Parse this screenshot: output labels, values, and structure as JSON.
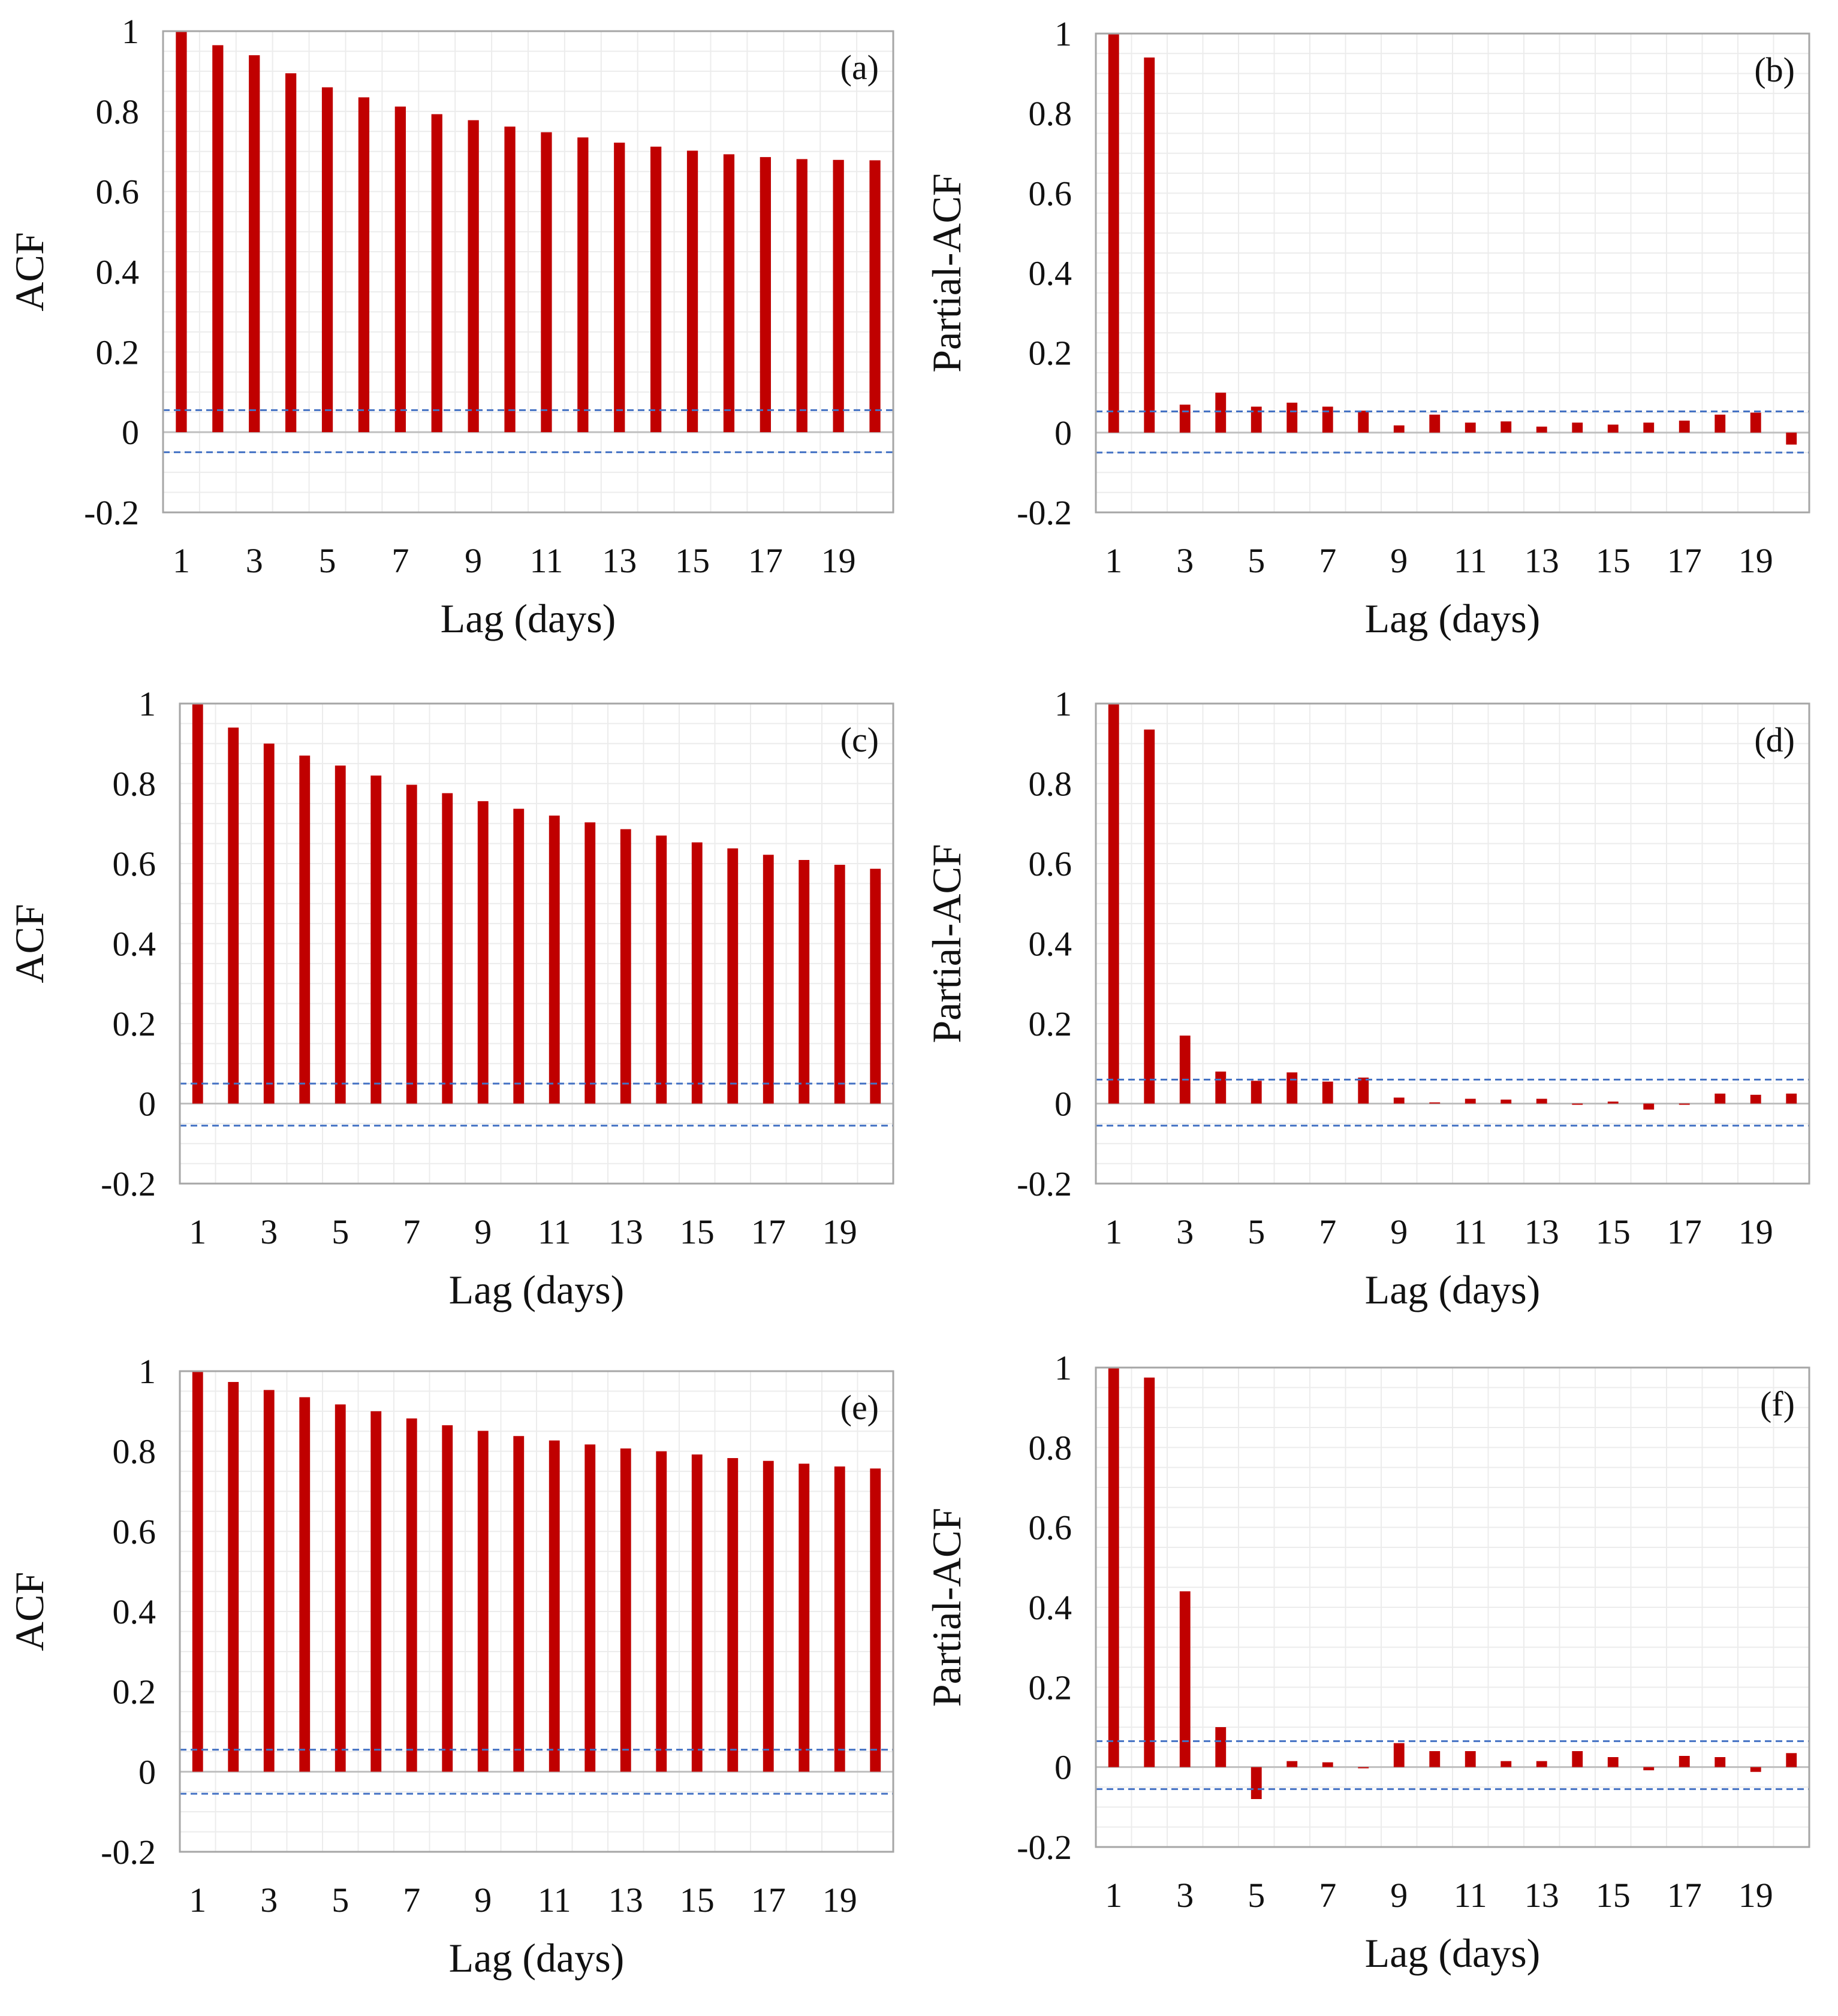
{
  "colors": {
    "bar": "#c00000",
    "confidence_line": "#4472c4",
    "frame": "#a6a6a6",
    "grid": "#ececec",
    "zero_line": "#bfbfbf"
  },
  "chart_data": [
    {
      "type": "bar",
      "panel_label": "(a)",
      "ylabel": "ACF",
      "xlabel": "Lag (days)",
      "ylim": [
        -0.2,
        1
      ],
      "y_ticks": [
        "1",
        "0.8",
        "0.6",
        "0.4",
        "0.2",
        "0",
        "-0.2"
      ],
      "x_ticks": [
        "1",
        "3",
        "5",
        "7",
        "9",
        "11",
        "13",
        "15",
        "17",
        "19"
      ],
      "lags": [
        1,
        2,
        3,
        4,
        5,
        6,
        7,
        8,
        9,
        10,
        11,
        12,
        13,
        14,
        15,
        16,
        17,
        18,
        19,
        20
      ],
      "values": [
        1.0,
        0.965,
        0.94,
        0.895,
        0.86,
        0.835,
        0.812,
        0.793,
        0.778,
        0.762,
        0.748,
        0.735,
        0.722,
        0.712,
        0.702,
        0.693,
        0.686,
        0.681,
        0.679,
        0.678
      ],
      "confidence_bounds": [
        0.055,
        -0.05
      ]
    },
    {
      "type": "bar",
      "panel_label": "(b)",
      "ylabel": "Partial-ACF",
      "xlabel": "Lag (days)",
      "ylim": [
        -0.2,
        1
      ],
      "y_ticks": [
        "1",
        "0.8",
        "0.6",
        "0.4",
        "0.2",
        "0",
        "-0.2"
      ],
      "x_ticks": [
        "1",
        "3",
        "5",
        "7",
        "9",
        "11",
        "13",
        "15",
        "17",
        "19"
      ],
      "lags": [
        1,
        2,
        3,
        4,
        5,
        6,
        7,
        8,
        9,
        10,
        11,
        12,
        13,
        14,
        15,
        16,
        17,
        18,
        19,
        20
      ],
      "values": [
        1.0,
        0.94,
        0.07,
        0.1,
        0.065,
        0.075,
        0.065,
        0.055,
        0.018,
        0.045,
        0.025,
        0.028,
        0.015,
        0.025,
        0.02,
        0.025,
        0.03,
        0.045,
        0.05,
        -0.03
      ],
      "confidence_bounds": [
        0.053,
        -0.05
      ]
    },
    {
      "type": "bar",
      "panel_label": "(c)",
      "ylabel": "ACF",
      "xlabel": "Lag (days)",
      "ylim": [
        -0.2,
        1
      ],
      "y_ticks": [
        "1",
        "0.8",
        "0.6",
        "0.4",
        "0.2",
        "0",
        "-0.2"
      ],
      "x_ticks": [
        "1",
        "3",
        "5",
        "7",
        "9",
        "11",
        "13",
        "15",
        "17",
        "19"
      ],
      "lags": [
        1,
        2,
        3,
        4,
        5,
        6,
        7,
        8,
        9,
        10,
        11,
        12,
        13,
        14,
        15,
        16,
        17,
        18,
        19,
        20
      ],
      "values": [
        1.0,
        0.94,
        0.9,
        0.87,
        0.845,
        0.82,
        0.797,
        0.776,
        0.756,
        0.737,
        0.72,
        0.703,
        0.686,
        0.67,
        0.653,
        0.638,
        0.622,
        0.609,
        0.597,
        0.587
      ],
      "confidence_bounds": [
        0.05,
        -0.055
      ]
    },
    {
      "type": "bar",
      "panel_label": "(d)",
      "ylabel": "Partial-ACF",
      "xlabel": "Lag (days)",
      "ylim": [
        -0.2,
        1
      ],
      "y_ticks": [
        "1",
        "0.8",
        "0.6",
        "0.4",
        "0.2",
        "0",
        "-0.2"
      ],
      "x_ticks": [
        "1",
        "3",
        "5",
        "7",
        "9",
        "11",
        "13",
        "15",
        "17",
        "19"
      ],
      "lags": [
        1,
        2,
        3,
        4,
        5,
        6,
        7,
        8,
        9,
        10,
        11,
        12,
        13,
        14,
        15,
        16,
        17,
        18,
        19,
        20
      ],
      "values": [
        1.0,
        0.935,
        0.17,
        0.08,
        0.057,
        0.078,
        0.055,
        0.065,
        0.015,
        0.003,
        0.012,
        0.01,
        0.012,
        -0.003,
        0.005,
        -0.015,
        0.0,
        0.025,
        0.022,
        0.025
      ],
      "confidence_bounds": [
        0.06,
        -0.055
      ]
    },
    {
      "type": "bar",
      "panel_label": "(e)",
      "ylabel": "ACF",
      "xlabel": "Lag (days)",
      "ylim": [
        -0.2,
        1
      ],
      "y_ticks": [
        "1",
        "0.8",
        "0.6",
        "0.4",
        "0.2",
        "0",
        "-0.2"
      ],
      "x_ticks": [
        "1",
        "3",
        "5",
        "7",
        "9",
        "11",
        "13",
        "15",
        "17",
        "19"
      ],
      "lags": [
        1,
        2,
        3,
        4,
        5,
        6,
        7,
        8,
        9,
        10,
        11,
        12,
        13,
        14,
        15,
        16,
        17,
        18,
        19,
        20
      ],
      "values": [
        1.0,
        0.973,
        0.953,
        0.935,
        0.917,
        0.9,
        0.882,
        0.865,
        0.851,
        0.838,
        0.827,
        0.817,
        0.807,
        0.8,
        0.792,
        0.783,
        0.776,
        0.769,
        0.762,
        0.757
      ],
      "confidence_bounds": [
        0.055,
        -0.055
      ]
    },
    {
      "type": "bar",
      "panel_label": "(f)",
      "ylabel": "Partial-ACF",
      "xlabel": "Lag (days)",
      "ylim": [
        -0.2,
        1
      ],
      "y_ticks": [
        "1",
        "0.8",
        "0.6",
        "0.4",
        "0.2",
        "0",
        "-0.2"
      ],
      "x_ticks": [
        "1",
        "3",
        "5",
        "7",
        "9",
        "11",
        "13",
        "15",
        "17",
        "19"
      ],
      "lags": [
        1,
        2,
        3,
        4,
        5,
        6,
        7,
        8,
        9,
        10,
        11,
        12,
        13,
        14,
        15,
        16,
        17,
        18,
        19,
        20
      ],
      "values": [
        1.0,
        0.975,
        0.44,
        0.1,
        -0.08,
        0.015,
        0.012,
        -0.003,
        0.06,
        0.04,
        0.04,
        0.015,
        0.015,
        0.04,
        0.025,
        -0.008,
        0.028,
        0.025,
        -0.012,
        0.035
      ],
      "confidence_bounds": [
        0.065,
        -0.055
      ]
    }
  ]
}
